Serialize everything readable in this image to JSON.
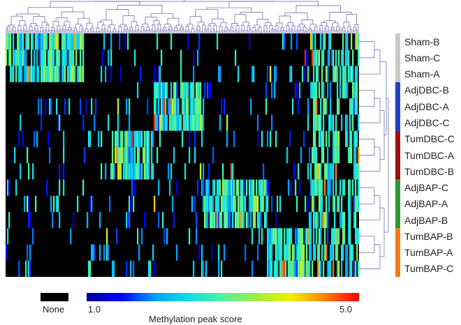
{
  "chart_data": {
    "type": "heatmap",
    "title": "",
    "rows": [
      "Sham-B",
      "Sham-C",
      "Sham-A",
      "AdjDBC-B",
      "AdjDBC-A",
      "AdjDBC-C",
      "TumDBC-C",
      "TumDBC-A",
      "TumDBC-B",
      "AdjBAP-C",
      "AdjBAP-A",
      "AdjBAP-B",
      "TumBAP-B",
      "TumBAP-A",
      "TumBAP-C"
    ],
    "groups": [
      {
        "rows": [
          "Sham-B",
          "Sham-C",
          "Sham-A"
        ],
        "color": "#c8c8c8"
      },
      {
        "rows": [
          "AdjDBC-B",
          "AdjDBC-A",
          "AdjDBC-C"
        ],
        "color": "#1f3fc0"
      },
      {
        "rows": [
          "TumDBC-C",
          "TumDBC-A",
          "TumDBC-B"
        ],
        "color": "#9a0f16"
      },
      {
        "rows": [
          "AdjBAP-C",
          "AdjBAP-A",
          "AdjBAP-B"
        ],
        "color": "#2f9a2f"
      },
      {
        "rows": [
          "TumBAP-B",
          "TumBAP-A",
          "TumBAP-C"
        ],
        "color": "#f07c1b"
      }
    ],
    "column_blocks": [
      {
        "range": [
          0.0,
          0.22
        ],
        "rows_high": [
          "Sham-B",
          "Sham-C",
          "Sham-A"
        ]
      },
      {
        "range": [
          0.22,
          0.3
        ],
        "rows_high": []
      },
      {
        "range": [
          0.3,
          0.42
        ],
        "rows_high": [
          "TumDBC-C",
          "TumDBC-A",
          "TumDBC-B"
        ]
      },
      {
        "range": [
          0.42,
          0.56
        ],
        "rows_high": [
          "AdjDBC-B",
          "AdjDBC-A",
          "AdjDBC-C"
        ]
      },
      {
        "range": [
          0.56,
          0.74
        ],
        "rows_high": [
          "AdjBAP-C",
          "AdjBAP-A",
          "AdjBAP-B"
        ]
      },
      {
        "range": [
          0.74,
          0.86
        ],
        "rows_high": [
          "TumBAP-B",
          "TumBAP-A",
          "TumBAP-C"
        ]
      },
      {
        "range": [
          0.86,
          1.0
        ],
        "rows_high": [
          "Sham-B",
          "Sham-C",
          "Sham-A",
          "AdjDBC-B",
          "AdjDBC-A",
          "AdjDBC-C",
          "TumDBC-C",
          "TumDBC-A",
          "TumDBC-B",
          "AdjBAP-C",
          "AdjBAP-A",
          "AdjBAP-B",
          "TumBAP-B",
          "TumBAP-A",
          "TumBAP-C"
        ]
      }
    ],
    "color_scale": {
      "min": 1.0,
      "max": 5.0,
      "min_label": "1.0",
      "max_label": "5.0",
      "label": "Methylation peak score",
      "colors": [
        "#00008f",
        "#0000ff",
        "#00a0ff",
        "#10e0e0",
        "#50f0a0",
        "#a0f040",
        "#f0f000",
        "#ff8000",
        "#ff0000"
      ]
    },
    "none_label": "None",
    "none_color": "#000000",
    "dendrogram_color": "#5a5aa8"
  }
}
